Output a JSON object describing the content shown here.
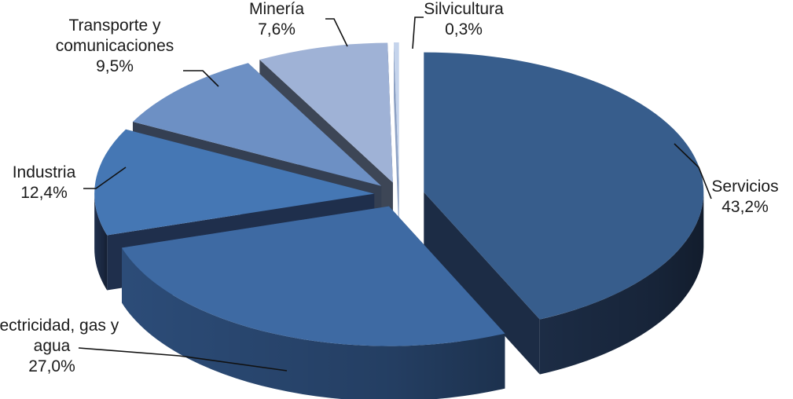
{
  "chart_data": {
    "type": "pie",
    "style": "3d-exploded",
    "title": "",
    "slices": [
      {
        "name": "Servicios",
        "label_lines": [
          "Servicios"
        ],
        "value": 43.2,
        "value_label": "43,2%",
        "top_color": "#375d8c",
        "side_color": "#1c2c45"
      },
      {
        "name": "Electricidad, gas y agua",
        "label_lines": [
          "Electricidad, gas y",
          "agua"
        ],
        "value": 27.0,
        "value_label": "27,0%",
        "top_color": "#3e6aa3",
        "side_color": "#2c4c78"
      },
      {
        "name": "Industria",
        "label_lines": [
          "Industria"
        ],
        "value": 12.4,
        "value_label": "12,4%",
        "top_color": "#4577b4",
        "side_color": "#1f2f4c"
      },
      {
        "name": "Transporte y comunicaciones",
        "label_lines": [
          "Transporte y",
          "comunicaciones"
        ],
        "value": 9.5,
        "value_label": "9,5%",
        "top_color": "#6d90c4",
        "side_color": "#343f52"
      },
      {
        "name": "Minería",
        "label_lines": [
          "Minería"
        ],
        "value": 7.6,
        "value_label": "7,6%",
        "top_color": "#9fb2d6",
        "side_color": "#3d4656"
      },
      {
        "name": "Silvicultura",
        "label_lines": [
          "Silvicultura"
        ],
        "value": 0.3,
        "value_label": "0,3%",
        "top_color": "#c5d4ec",
        "side_color": "#8ea2c4"
      }
    ]
  }
}
